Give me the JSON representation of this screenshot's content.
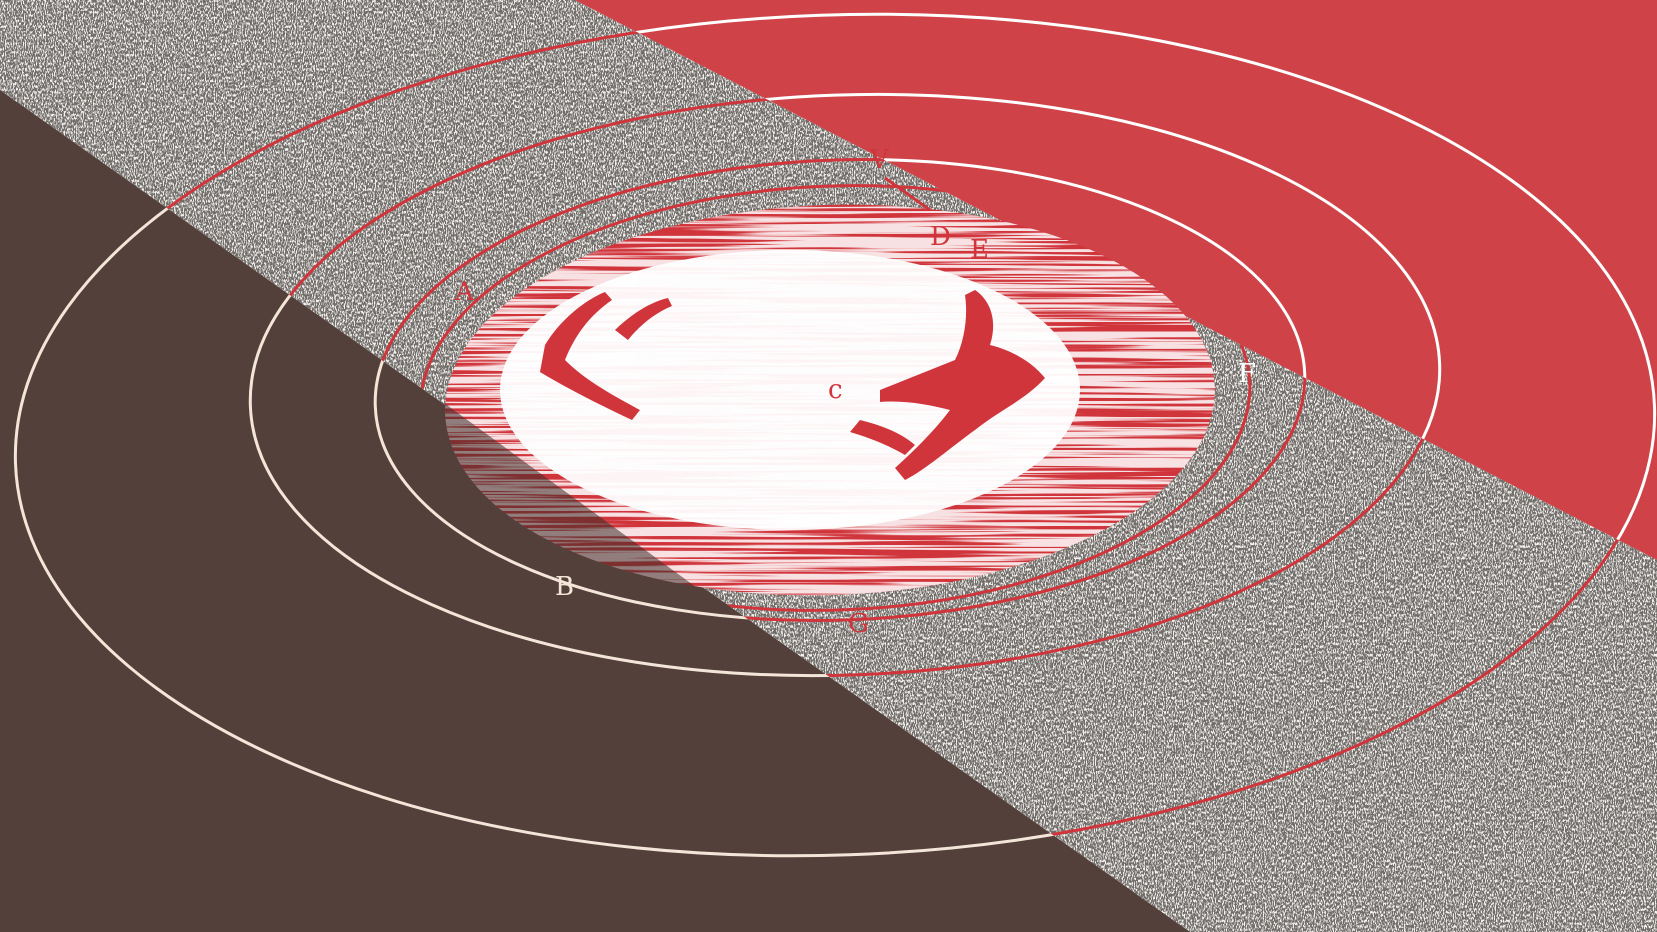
{
  "artwork": {
    "kind": "engraved concentric-circle diagram on tricolour diagonal bands",
    "colors": {
      "brown": "#54403a",
      "red": "#cf4247",
      "speckle_light": "#f4f2ee",
      "speckle_dark": "#2a2623",
      "line_on_brown": "#f3e6d8",
      "line_on_red": "#ffffff",
      "engraving": "#d0353c"
    },
    "labels": {
      "a": "A",
      "b": "B",
      "c": "c",
      "d": "D",
      "e": "E",
      "f": "F",
      "g": "G",
      "v": "V"
    }
  }
}
